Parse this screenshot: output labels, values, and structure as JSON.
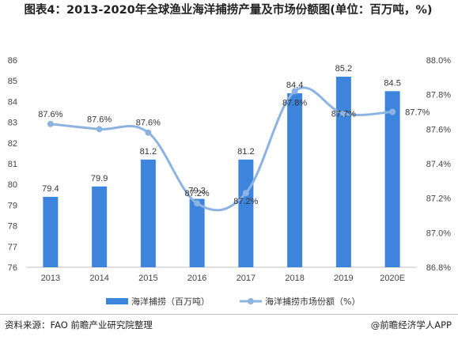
{
  "title": "图表4：2013-2020年全球渔业海洋捕捞产量及市场份额图(单位：百万吨，%)",
  "footer": {
    "source": "资料来源：FAO 前瞻产业研究院整理",
    "brand": "@前瞻经济学人APP"
  },
  "colors": {
    "bar": "#3c84dc",
    "line": "#8db3e2",
    "axis": "#bfbfbf"
  },
  "chart_data": {
    "type": "bar",
    "categories": [
      "2013",
      "2014",
      "2015",
      "2016",
      "2017",
      "2018",
      "2019",
      "2020E"
    ],
    "series": [
      {
        "name": "海洋捕捞（百万吨）",
        "type": "bar",
        "axis": "left",
        "values": [
          79.4,
          79.9,
          81.2,
          79.3,
          81.2,
          84.4,
          85.2,
          84.5
        ],
        "labels": [
          "79.4",
          "79.9",
          "81.2",
          "79.3",
          "81.2",
          "84.4",
          "85.2",
          "84.5"
        ]
      },
      {
        "name": "海洋捕捞市场份额（%）",
        "type": "line",
        "axis": "right",
        "values": [
          87.63,
          87.6,
          87.58,
          87.17,
          87.23,
          87.82,
          87.69,
          87.7
        ],
        "labels": [
          "87.6%",
          "87.6%",
          "87.6%",
          "87.2%",
          "87.2%",
          "87.8%",
          "87.7%",
          "87.7%"
        ]
      }
    ],
    "y_left": {
      "range": [
        76,
        86
      ],
      "ticks": [
        "76",
        "77",
        "78",
        "79",
        "80",
        "81",
        "82",
        "83",
        "84",
        "85",
        "86"
      ]
    },
    "y_right": {
      "range": [
        86.8,
        88.0
      ],
      "ticks": [
        "86.8%",
        "87.0%",
        "87.2%",
        "87.4%",
        "87.6%",
        "87.8%",
        "88.0%"
      ]
    },
    "grid": false,
    "legend_position": "bottom"
  }
}
